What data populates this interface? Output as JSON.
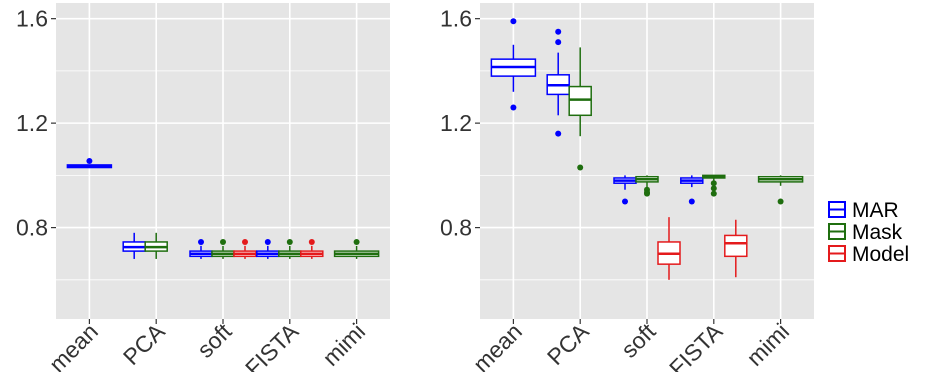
{
  "chart_data": [
    {
      "type": "box",
      "categories": [
        "mean",
        "PCA",
        "soft",
        "FISTA",
        "mimi"
      ],
      "ylim": [
        0.45,
        1.66
      ],
      "y_ticks": [
        "0.8",
        "1.2",
        "1.6"
      ],
      "grid": true,
      "boxes": [
        {
          "category": "mean",
          "series": "MAR",
          "min": 1.03,
          "q1": 1.03,
          "median": 1.035,
          "q3": 1.04,
          "max": 1.04,
          "outliers": [
            1.055
          ]
        },
        {
          "category": "PCA",
          "series": "MAR",
          "min": 0.68,
          "q1": 0.71,
          "median": 0.725,
          "q3": 0.745,
          "max": 0.78,
          "outliers": []
        },
        {
          "category": "PCA",
          "series": "Mask",
          "min": 0.68,
          "q1": 0.71,
          "median": 0.725,
          "q3": 0.745,
          "max": 0.78,
          "outliers": []
        },
        {
          "category": "soft",
          "series": "MAR",
          "min": 0.68,
          "q1": 0.69,
          "median": 0.7,
          "q3": 0.71,
          "max": 0.73,
          "outliers": [
            0.745
          ]
        },
        {
          "category": "soft",
          "series": "Mask",
          "min": 0.68,
          "q1": 0.69,
          "median": 0.7,
          "q3": 0.71,
          "max": 0.73,
          "outliers": [
            0.745
          ]
        },
        {
          "category": "soft",
          "series": "Model",
          "min": 0.68,
          "q1": 0.69,
          "median": 0.7,
          "q3": 0.71,
          "max": 0.73,
          "outliers": [
            0.745
          ]
        },
        {
          "category": "FISTA",
          "series": "MAR",
          "min": 0.68,
          "q1": 0.69,
          "median": 0.7,
          "q3": 0.71,
          "max": 0.73,
          "outliers": [
            0.745
          ]
        },
        {
          "category": "FISTA",
          "series": "Mask",
          "min": 0.68,
          "q1": 0.69,
          "median": 0.7,
          "q3": 0.71,
          "max": 0.73,
          "outliers": [
            0.745
          ]
        },
        {
          "category": "FISTA",
          "series": "Model",
          "min": 0.68,
          "q1": 0.69,
          "median": 0.7,
          "q3": 0.71,
          "max": 0.73,
          "outliers": [
            0.745
          ]
        },
        {
          "category": "mimi",
          "series": "Mask",
          "min": 0.68,
          "q1": 0.69,
          "median": 0.7,
          "q3": 0.71,
          "max": 0.73,
          "outliers": [
            0.745
          ]
        }
      ]
    },
    {
      "type": "box",
      "categories": [
        "mean",
        "PCA",
        "soft",
        "FISTA",
        "mimi"
      ],
      "ylim": [
        0.45,
        1.66
      ],
      "y_ticks": [
        "0.8",
        "1.2",
        "1.6"
      ],
      "grid": true,
      "boxes": [
        {
          "category": "mean",
          "series": "MAR",
          "min": 1.32,
          "q1": 1.38,
          "median": 1.415,
          "q3": 1.445,
          "max": 1.5,
          "outliers": [
            1.59,
            1.26
          ]
        },
        {
          "category": "PCA",
          "series": "MAR",
          "min": 1.23,
          "q1": 1.31,
          "median": 1.345,
          "q3": 1.385,
          "max": 1.47,
          "outliers": [
            1.55,
            1.51,
            1.16
          ]
        },
        {
          "category": "PCA",
          "series": "Mask",
          "min": 1.15,
          "q1": 1.23,
          "median": 1.29,
          "q3": 1.34,
          "max": 1.49,
          "outliers": [
            1.03
          ]
        },
        {
          "category": "soft",
          "series": "MAR",
          "min": 0.945,
          "q1": 0.97,
          "median": 0.98,
          "q3": 0.99,
          "max": 1.0,
          "outliers": [
            0.9
          ]
        },
        {
          "category": "soft",
          "series": "Mask",
          "min": 0.955,
          "q1": 0.975,
          "median": 0.985,
          "q3": 0.995,
          "max": 1.0,
          "outliers": [
            0.945,
            0.935,
            0.93
          ]
        },
        {
          "category": "soft",
          "series": "Model",
          "min": 0.6,
          "q1": 0.66,
          "median": 0.7,
          "q3": 0.745,
          "max": 0.84,
          "outliers": []
        },
        {
          "category": "FISTA",
          "series": "MAR",
          "min": 0.955,
          "q1": 0.97,
          "median": 0.98,
          "q3": 0.99,
          "max": 1.0,
          "outliers": [
            0.9
          ]
        },
        {
          "category": "FISTA",
          "series": "Mask",
          "min": 0.98,
          "q1": 0.99,
          "median": 0.995,
          "q3": 1.0,
          "max": 1.0,
          "outliers": [
            0.97,
            0.95,
            0.93
          ]
        },
        {
          "category": "FISTA",
          "series": "Model",
          "min": 0.61,
          "q1": 0.69,
          "median": 0.74,
          "q3": 0.77,
          "max": 0.83,
          "outliers": []
        },
        {
          "category": "mimi",
          "series": "Mask",
          "min": 0.96,
          "q1": 0.975,
          "median": 0.985,
          "q3": 0.995,
          "max": 1.0,
          "outliers": [
            0.9
          ]
        }
      ]
    }
  ],
  "legend": {
    "position": "right",
    "items": [
      {
        "label": "MAR",
        "color": "#0000ff"
      },
      {
        "label": "Mask",
        "color": "#1f6e0f"
      },
      {
        "label": "Model",
        "color": "#e41a1c"
      }
    ]
  },
  "colors": {
    "MAR": "#0000ff",
    "Mask": "#1f6e0f",
    "Model": "#e41a1c",
    "panel_bg": "#e5e5e5",
    "grid": "#ffffff"
  }
}
